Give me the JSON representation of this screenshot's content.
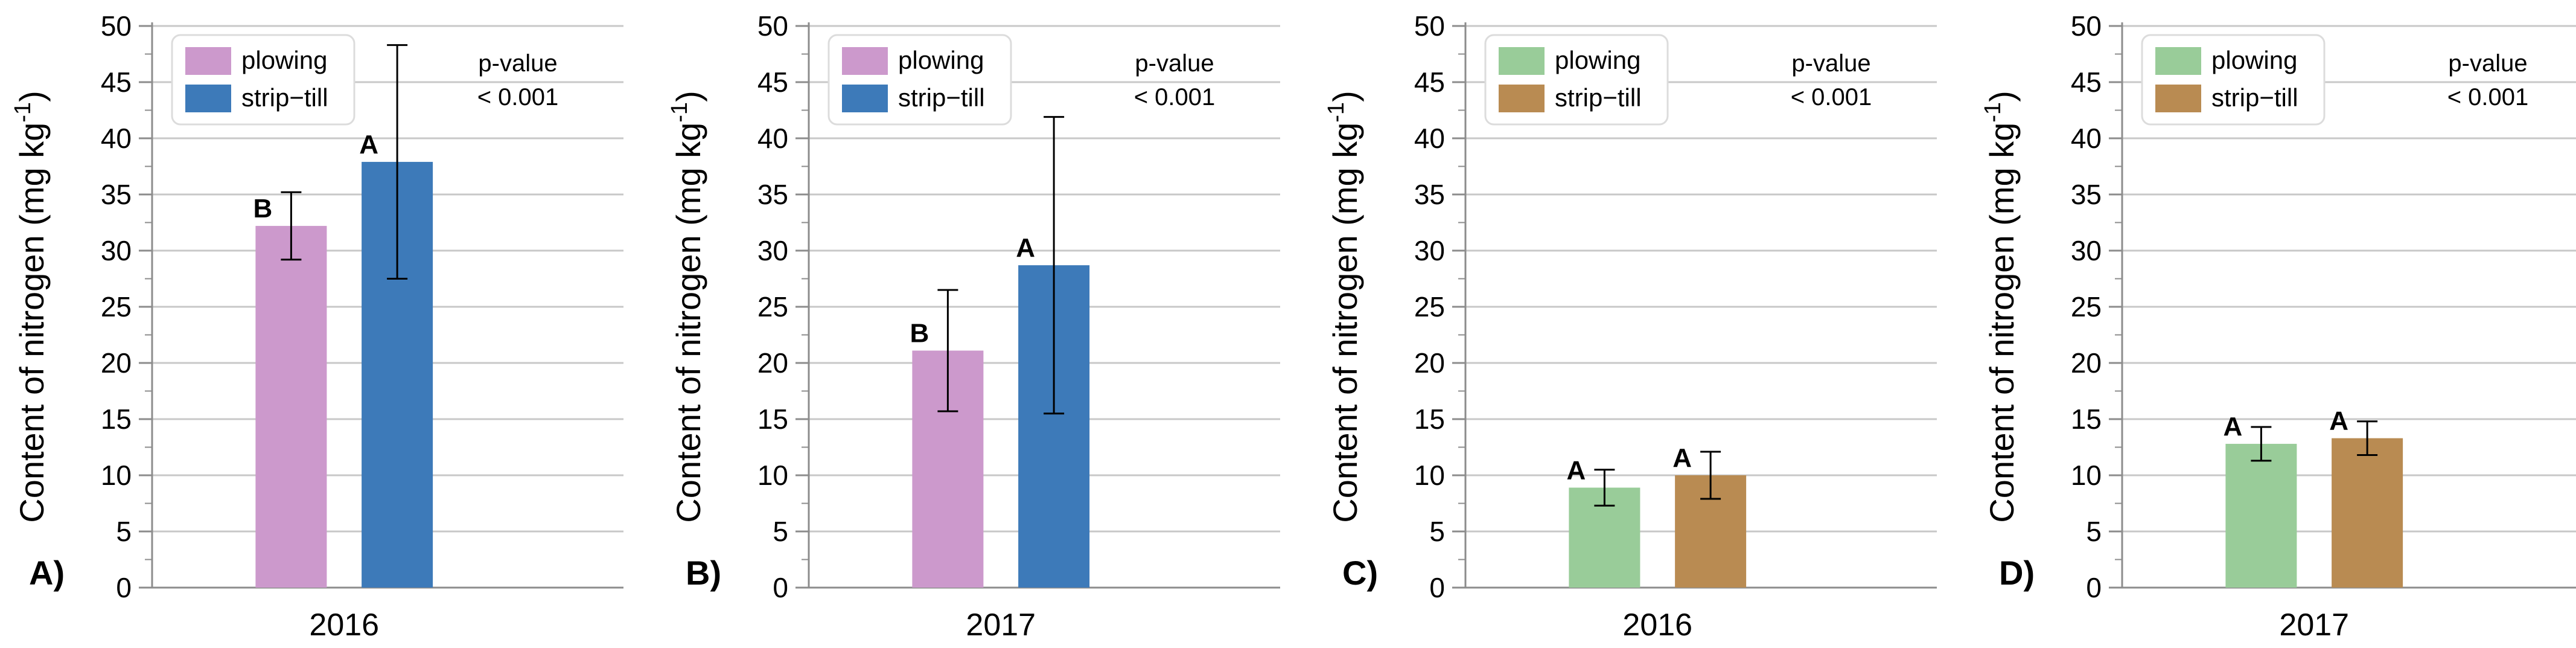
{
  "chart_data": [
    {
      "type": "bar",
      "panel_label": "A)",
      "categories": [
        "2016"
      ],
      "series": [
        {
          "name": "plowing",
          "values": [
            32.2
          ],
          "error": [
            3.0
          ],
          "sig": "B",
          "color": "#cc99cc"
        },
        {
          "name": "strip−till",
          "values": [
            37.9
          ],
          "error": [
            10.4
          ],
          "sig": "A",
          "color": "#3d7ab9"
        }
      ],
      "ylabel": "Content of nitrogen (mg kg",
      "ylabel_sup": "-1",
      "ylabel_close": ")",
      "ylim": [
        0,
        50
      ],
      "yticks": [
        0,
        5,
        10,
        15,
        20,
        25,
        30,
        35,
        40,
        45,
        50
      ],
      "grid": true,
      "legend": "top-left",
      "annotation": {
        "title": "p-value",
        "value": "< 0.001"
      }
    },
    {
      "type": "bar",
      "panel_label": "B)",
      "categories": [
        "2017"
      ],
      "series": [
        {
          "name": "plowing",
          "values": [
            21.1
          ],
          "error": [
            5.4
          ],
          "sig": "B",
          "color": "#cc99cc"
        },
        {
          "name": "strip−till",
          "values": [
            28.7
          ],
          "error": [
            13.2
          ],
          "sig": "A",
          "color": "#3d7ab9"
        }
      ],
      "ylabel": "Content of nitrogen (mg kg",
      "ylabel_sup": "-1",
      "ylabel_close": ")",
      "ylim": [
        0,
        50
      ],
      "yticks": [
        0,
        5,
        10,
        15,
        20,
        25,
        30,
        35,
        40,
        45,
        50
      ],
      "grid": true,
      "legend": "top-left",
      "annotation": {
        "title": "p-value",
        "value": "< 0.001"
      }
    },
    {
      "type": "bar",
      "panel_label": "C)",
      "categories": [
        "2016"
      ],
      "series": [
        {
          "name": "plowing",
          "values": [
            8.9
          ],
          "error": [
            1.6
          ],
          "sig": "A",
          "color": "#99cc99"
        },
        {
          "name": "strip−till",
          "values": [
            10.0
          ],
          "error": [
            2.1
          ],
          "sig": "A",
          "color": "#b98b52"
        }
      ],
      "ylabel": "Content of nitrogen (mg kg",
      "ylabel_sup": "-1",
      "ylabel_close": ")",
      "ylim": [
        0,
        50
      ],
      "yticks": [
        0,
        5,
        10,
        15,
        20,
        25,
        30,
        35,
        40,
        45,
        50
      ],
      "grid": true,
      "legend": "top-left",
      "annotation": {
        "title": "p-value",
        "value": "< 0.001"
      }
    },
    {
      "type": "bar",
      "panel_label": "D)",
      "categories": [
        "2017"
      ],
      "series": [
        {
          "name": "plowing",
          "values": [
            12.8
          ],
          "error": [
            1.5
          ],
          "sig": "A",
          "color": "#99cc99"
        },
        {
          "name": "strip−till",
          "values": [
            13.3
          ],
          "error": [
            1.5
          ],
          "sig": "A",
          "color": "#b98b52"
        }
      ],
      "ylabel": "Content of nitrogen (mg kg",
      "ylabel_sup": "-1",
      "ylabel_close": ")",
      "ylim": [
        0,
        50
      ],
      "yticks": [
        0,
        5,
        10,
        15,
        20,
        25,
        30,
        35,
        40,
        45,
        50
      ],
      "grid": true,
      "legend": "top-left",
      "annotation": {
        "title": "p-value",
        "value": "< 0.001"
      }
    }
  ]
}
